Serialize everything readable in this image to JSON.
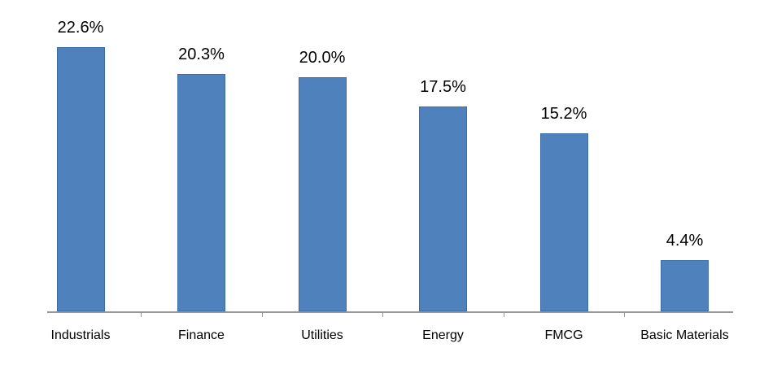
{
  "chart_data": {
    "type": "bar",
    "title": "",
    "xlabel": "",
    "ylabel": "",
    "categories": [
      "Industrials",
      "Finance",
      "Utilities",
      "Energy",
      "FMCG",
      "Basic Materials"
    ],
    "values": [
      22.6,
      20.3,
      20.0,
      17.5,
      15.2,
      4.4
    ],
    "value_labels": [
      "22.6%",
      "20.3%",
      "20.0%",
      "17.5%",
      "15.2%",
      "4.4%"
    ],
    "unit": "%",
    "ylim": [
      0,
      26
    ],
    "grid": false,
    "legend": "none",
    "bar_color": "#4F81BD",
    "bar_border_color": "#3D6DA8",
    "axis_color": "#969696",
    "label_color": "#000000",
    "background_color": "#FFFFFF"
  }
}
